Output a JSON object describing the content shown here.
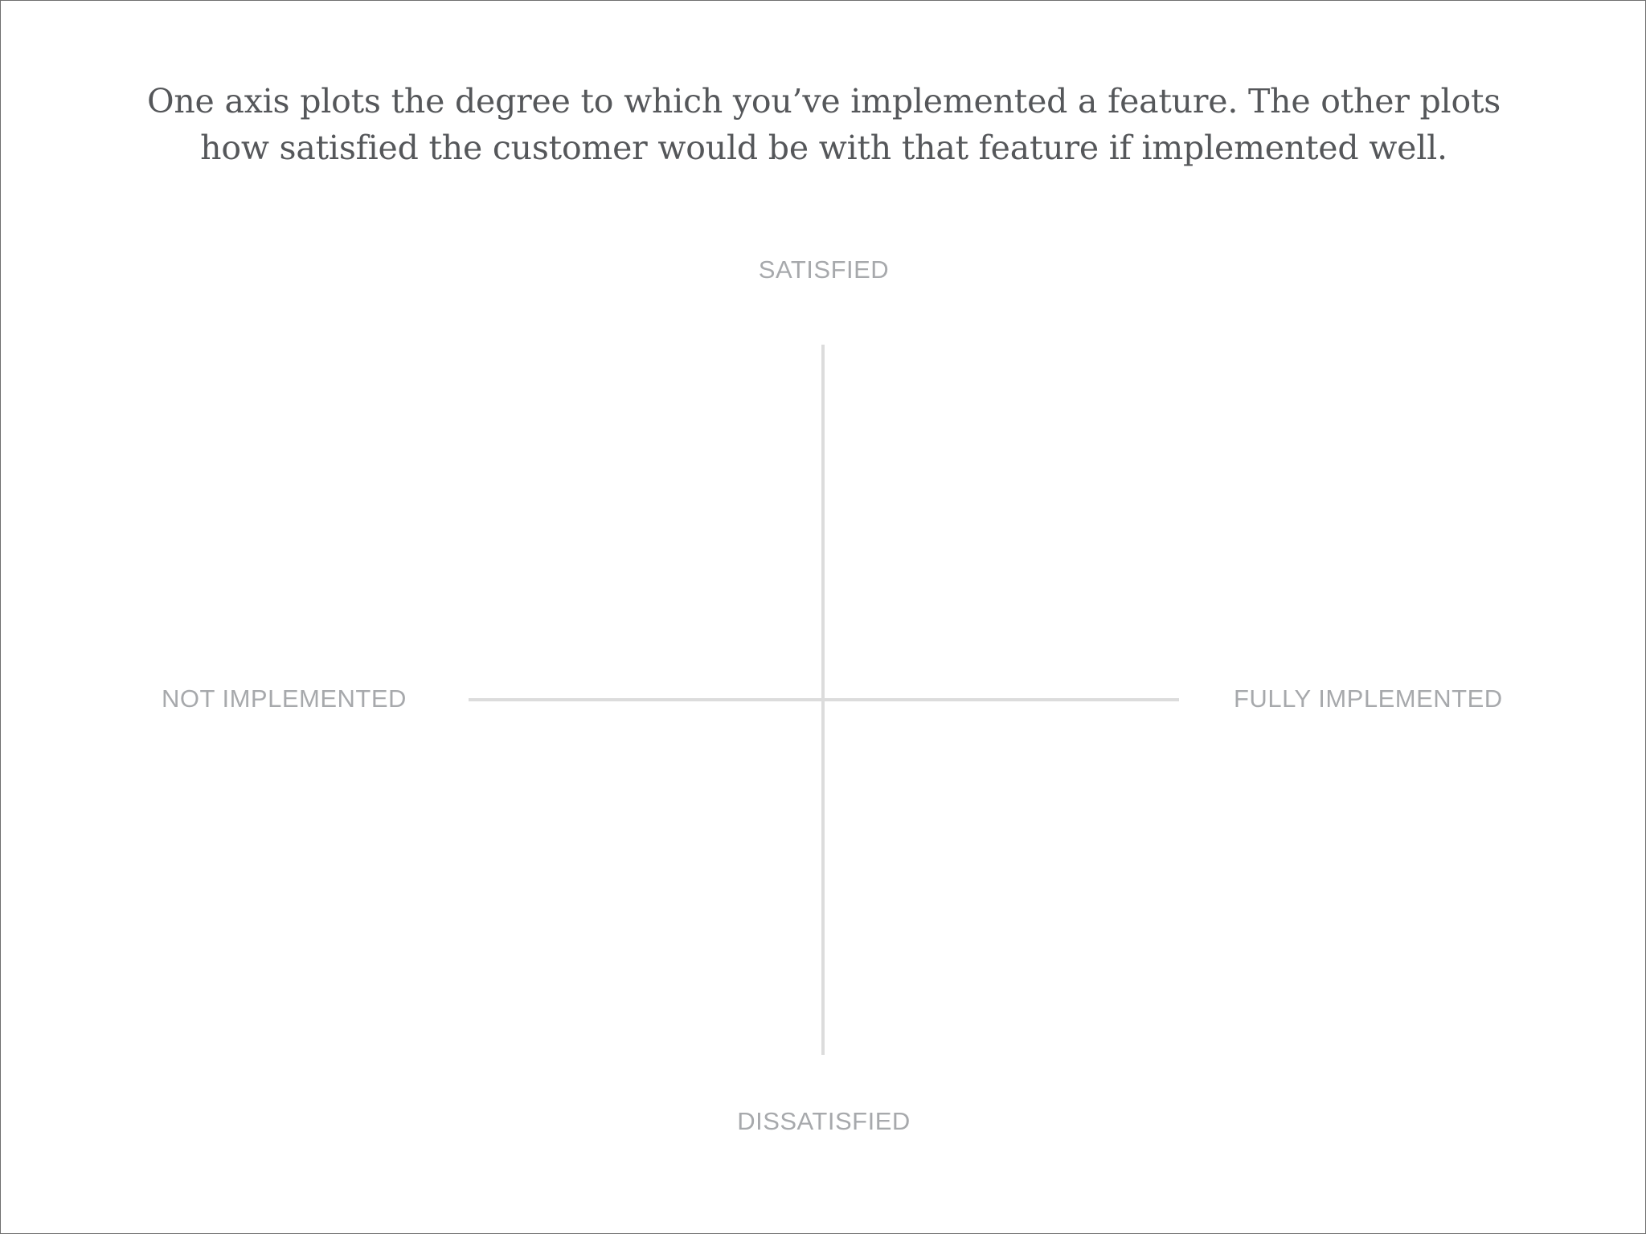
{
  "caption": {
    "line1": "One axis plots the degree to which you’ve implemented a feature. The other plots",
    "line2": "how satisfied the customer would be with that feature if implemented well."
  },
  "axes": {
    "top_label": "SATISFIED",
    "bottom_label": "DISSATISFIED",
    "left_label": "NOT IMPLEMENTED",
    "right_label": "FULLY IMPLEMENTED"
  },
  "colors": {
    "caption_text": "#55575a",
    "axis_label_text": "#a7a9ac",
    "axis_line": "#dcdcdc",
    "frame_border": "#6f6f6f",
    "background": "#ffffff"
  }
}
